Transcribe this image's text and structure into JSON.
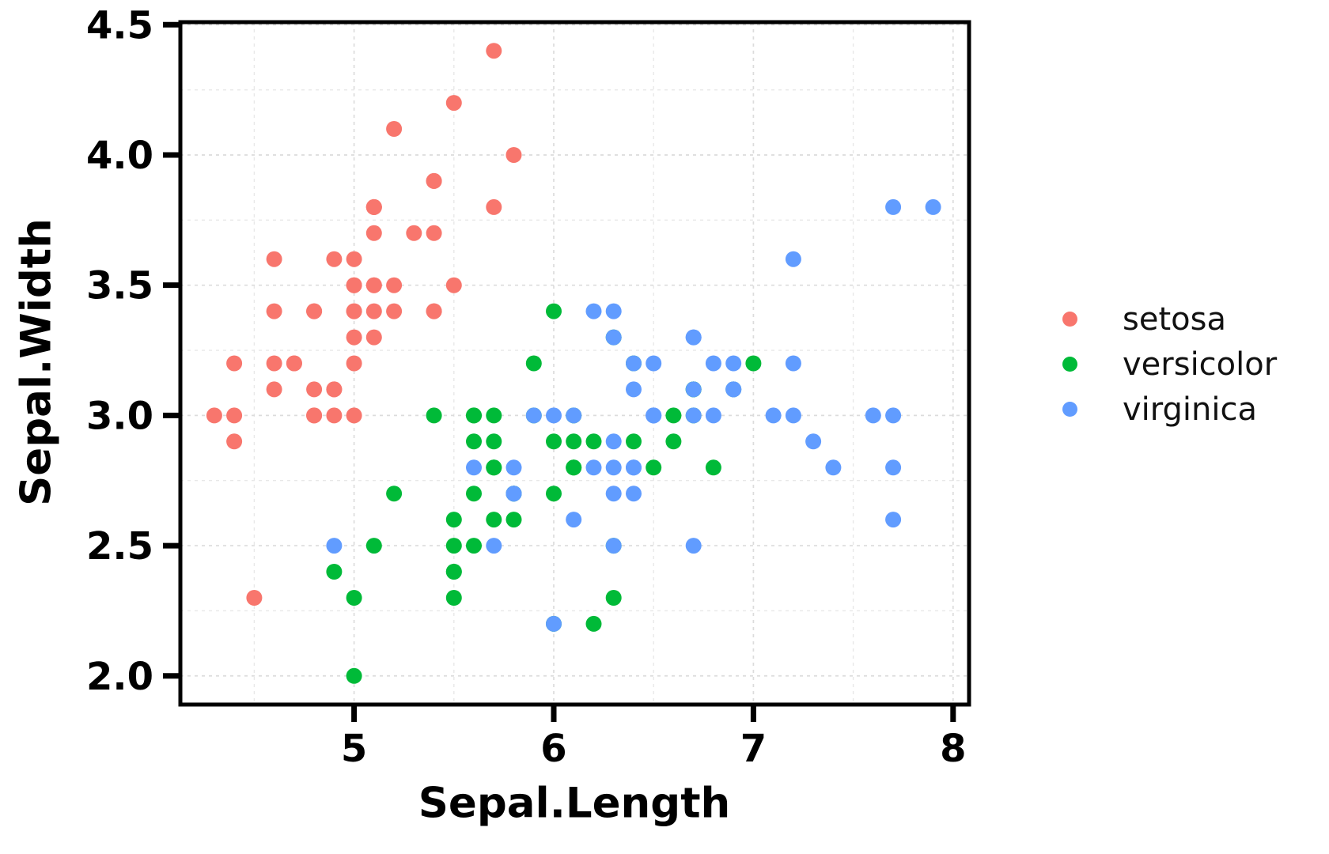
{
  "figure": {
    "background": "#ffffff"
  },
  "chart_data": {
    "type": "scatter",
    "title": "",
    "xlabel": "Sepal.Length",
    "ylabel": "Sepal.Width",
    "xlim": [
      4.13,
      8.08
    ],
    "ylim": [
      1.89,
      4.51
    ],
    "xticks": {
      "values": [
        5,
        6,
        7,
        8
      ],
      "labels": [
        "5",
        "6",
        "7",
        "8"
      ]
    },
    "yticks": {
      "values": [
        2.0,
        2.5,
        3.0,
        3.5,
        4.0,
        4.5
      ],
      "labels": [
        "2.0",
        "2.5",
        "3.0",
        "3.5",
        "4.0",
        "4.5"
      ]
    },
    "x_minor_ticks": [
      4.5,
      5.5,
      6.5,
      7.5
    ],
    "y_minor_ticks": [
      2.25,
      2.75,
      3.25,
      3.75,
      4.25
    ],
    "grid": {
      "style": "dashed",
      "major_color": "#dcdcdc",
      "minor_color": "#e8e8e8"
    },
    "axis_color": "#000000",
    "tick_label_color": "#000000",
    "point_radius": 10,
    "legend": {
      "position": "right"
    },
    "series": [
      {
        "name": "setosa",
        "color": "#F8766D",
        "points": [
          [
            5.1,
            3.5
          ],
          [
            4.9,
            3.0
          ],
          [
            4.7,
            3.2
          ],
          [
            4.6,
            3.1
          ],
          [
            5.0,
            3.6
          ],
          [
            5.4,
            3.9
          ],
          [
            4.6,
            3.4
          ],
          [
            5.0,
            3.4
          ],
          [
            4.4,
            2.9
          ],
          [
            4.9,
            3.1
          ],
          [
            5.4,
            3.7
          ],
          [
            4.8,
            3.4
          ],
          [
            4.8,
            3.0
          ],
          [
            4.3,
            3.0
          ],
          [
            5.8,
            4.0
          ],
          [
            5.7,
            4.4
          ],
          [
            5.4,
            3.9
          ],
          [
            5.1,
            3.5
          ],
          [
            5.7,
            3.8
          ],
          [
            5.1,
            3.8
          ],
          [
            5.4,
            3.4
          ],
          [
            5.1,
            3.7
          ],
          [
            4.6,
            3.6
          ],
          [
            5.1,
            3.3
          ],
          [
            4.8,
            3.4
          ],
          [
            5.0,
            3.0
          ],
          [
            5.0,
            3.4
          ],
          [
            5.2,
            3.5
          ],
          [
            5.2,
            3.4
          ],
          [
            4.7,
            3.2
          ],
          [
            4.8,
            3.1
          ],
          [
            5.4,
            3.4
          ],
          [
            5.2,
            4.1
          ],
          [
            5.5,
            4.2
          ],
          [
            4.9,
            3.1
          ],
          [
            5.0,
            3.2
          ],
          [
            5.5,
            3.5
          ],
          [
            4.9,
            3.6
          ],
          [
            4.4,
            3.0
          ],
          [
            5.1,
            3.4
          ],
          [
            5.0,
            3.5
          ],
          [
            4.5,
            2.3
          ],
          [
            4.4,
            3.2
          ],
          [
            5.0,
            3.5
          ],
          [
            5.1,
            3.8
          ],
          [
            4.8,
            3.0
          ],
          [
            5.1,
            3.8
          ],
          [
            4.6,
            3.2
          ],
          [
            5.3,
            3.7
          ],
          [
            5.0,
            3.3
          ]
        ]
      },
      {
        "name": "versicolor",
        "color": "#00BA38",
        "points": [
          [
            7.0,
            3.2
          ],
          [
            6.4,
            3.2
          ],
          [
            6.9,
            3.1
          ],
          [
            5.5,
            2.3
          ],
          [
            6.5,
            2.8
          ],
          [
            5.7,
            2.8
          ],
          [
            6.3,
            3.3
          ],
          [
            4.9,
            2.4
          ],
          [
            6.6,
            2.9
          ],
          [
            5.2,
            2.7
          ],
          [
            5.0,
            2.0
          ],
          [
            5.9,
            3.0
          ],
          [
            6.0,
            2.2
          ],
          [
            6.1,
            2.9
          ],
          [
            5.6,
            2.9
          ],
          [
            6.7,
            3.1
          ],
          [
            5.6,
            3.0
          ],
          [
            5.8,
            2.7
          ],
          [
            6.2,
            2.2
          ],
          [
            5.6,
            2.5
          ],
          [
            5.9,
            3.2
          ],
          [
            6.1,
            2.8
          ],
          [
            6.3,
            2.5
          ],
          [
            6.1,
            2.8
          ],
          [
            6.4,
            2.9
          ],
          [
            6.6,
            3.0
          ],
          [
            6.8,
            2.8
          ],
          [
            6.7,
            3.0
          ],
          [
            6.0,
            2.9
          ],
          [
            5.7,
            2.6
          ],
          [
            5.5,
            2.4
          ],
          [
            5.5,
            2.4
          ],
          [
            5.8,
            2.7
          ],
          [
            6.0,
            2.7
          ],
          [
            5.4,
            3.0
          ],
          [
            6.0,
            3.4
          ],
          [
            6.7,
            3.1
          ],
          [
            6.3,
            2.3
          ],
          [
            5.6,
            3.0
          ],
          [
            5.5,
            2.5
          ],
          [
            5.5,
            2.6
          ],
          [
            6.1,
            3.0
          ],
          [
            5.8,
            2.6
          ],
          [
            5.0,
            2.3
          ],
          [
            5.6,
            2.7
          ],
          [
            5.7,
            3.0
          ],
          [
            5.7,
            2.9
          ],
          [
            6.2,
            2.9
          ],
          [
            5.1,
            2.5
          ],
          [
            5.7,
            2.8
          ]
        ]
      },
      {
        "name": "virginica",
        "color": "#619CFF",
        "points": [
          [
            6.3,
            3.3
          ],
          [
            5.8,
            2.7
          ],
          [
            7.1,
            3.0
          ],
          [
            6.3,
            2.9
          ],
          [
            6.5,
            3.0
          ],
          [
            7.6,
            3.0
          ],
          [
            4.9,
            2.5
          ],
          [
            7.3,
            2.9
          ],
          [
            6.7,
            2.5
          ],
          [
            7.2,
            3.6
          ],
          [
            6.5,
            3.2
          ],
          [
            6.4,
            2.7
          ],
          [
            6.8,
            3.0
          ],
          [
            5.7,
            2.5
          ],
          [
            5.8,
            2.8
          ],
          [
            6.4,
            3.2
          ],
          [
            6.5,
            3.0
          ],
          [
            7.7,
            3.8
          ],
          [
            7.7,
            2.6
          ],
          [
            6.0,
            2.2
          ],
          [
            6.9,
            3.2
          ],
          [
            5.6,
            2.8
          ],
          [
            7.7,
            2.8
          ],
          [
            6.3,
            2.7
          ],
          [
            6.7,
            3.3
          ],
          [
            7.2,
            3.2
          ],
          [
            6.2,
            2.8
          ],
          [
            6.1,
            3.0
          ],
          [
            6.4,
            2.8
          ],
          [
            7.2,
            3.0
          ],
          [
            7.4,
            2.8
          ],
          [
            7.9,
            3.8
          ],
          [
            6.4,
            2.8
          ],
          [
            6.3,
            2.8
          ],
          [
            6.1,
            2.6
          ],
          [
            7.7,
            3.0
          ],
          [
            6.3,
            3.4
          ],
          [
            6.4,
            3.1
          ],
          [
            6.0,
            3.0
          ],
          [
            6.9,
            3.1
          ],
          [
            6.7,
            3.1
          ],
          [
            6.9,
            3.1
          ],
          [
            5.8,
            2.7
          ],
          [
            6.8,
            3.2
          ],
          [
            6.7,
            3.3
          ],
          [
            6.7,
            3.0
          ],
          [
            6.3,
            2.5
          ],
          [
            6.5,
            3.0
          ],
          [
            6.2,
            3.4
          ],
          [
            5.9,
            3.0
          ]
        ]
      }
    ]
  }
}
